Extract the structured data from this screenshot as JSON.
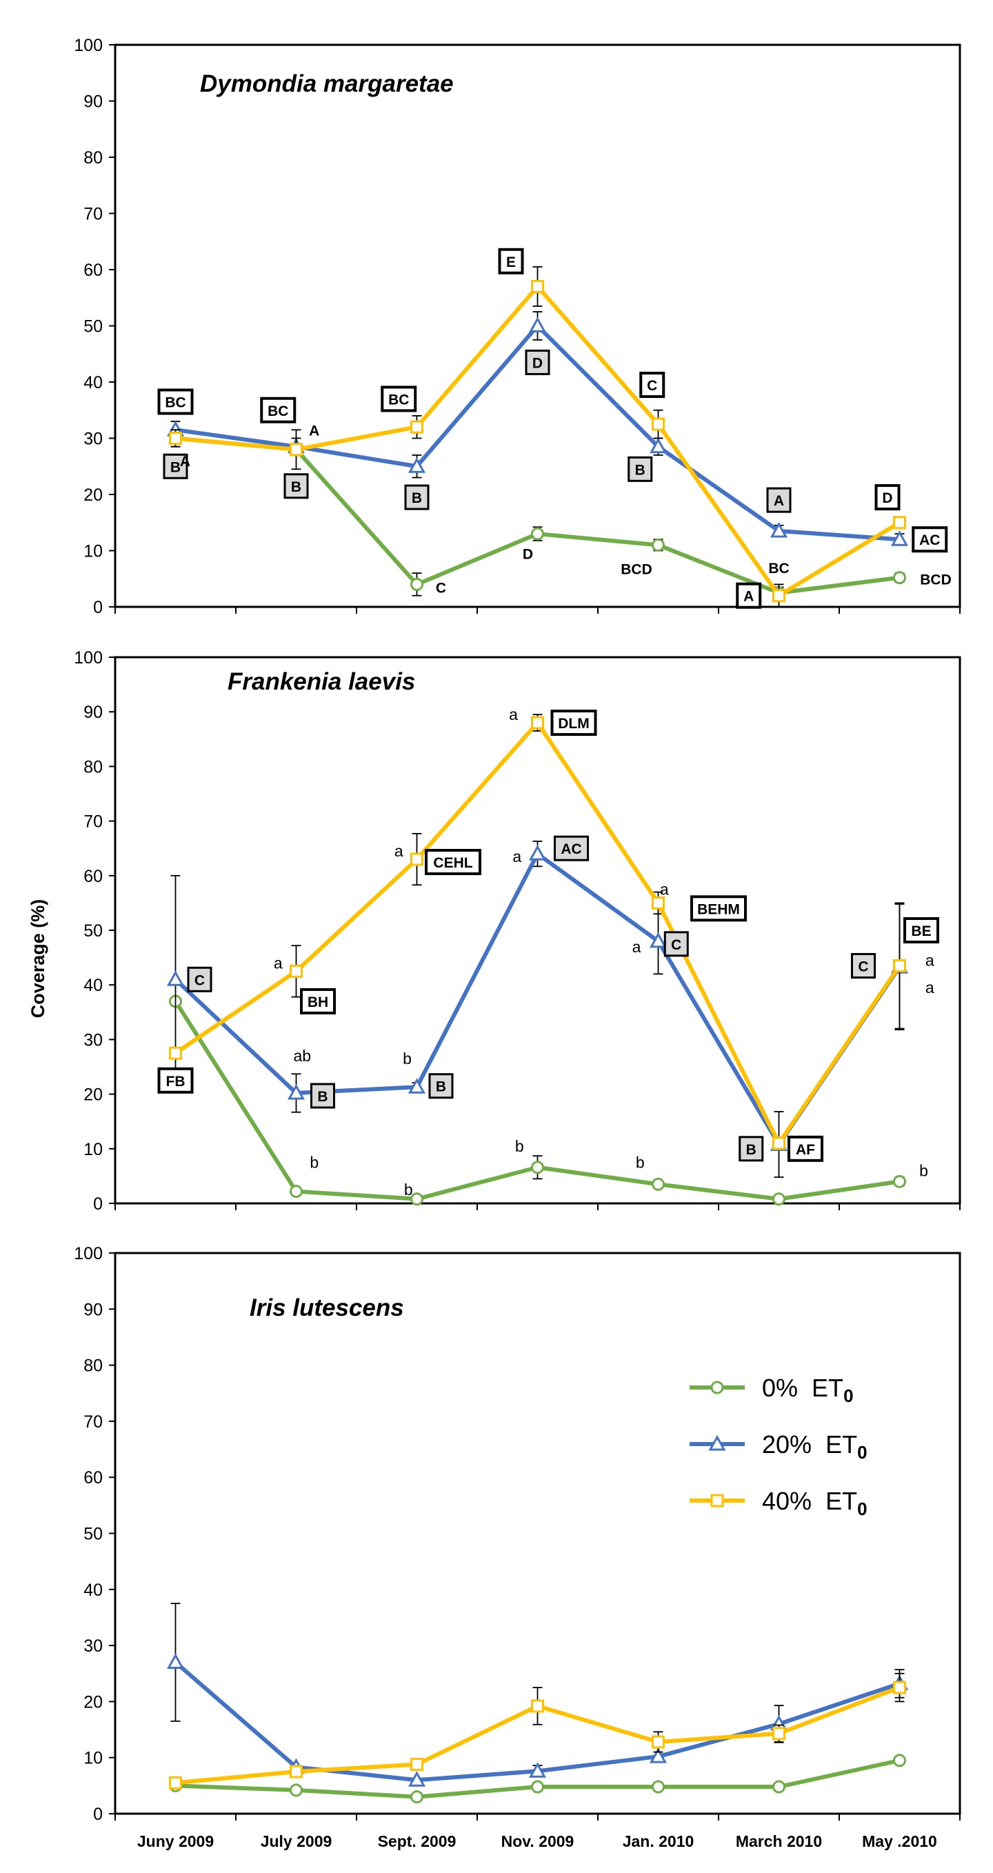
{
  "chart_data": [
    {
      "type": "line",
      "title": "Dymondia margaretae",
      "ylabel": "",
      "ylim": [
        0,
        100
      ],
      "yticks": [
        0,
        10,
        20,
        30,
        40,
        50,
        60,
        70,
        80,
        90,
        100
      ],
      "categories": [
        "Juny 2009",
        "July 2009",
        "Sept. 2009",
        "Nov. 2009",
        "Jan. 2010",
        "March 2010",
        "May .2010"
      ],
      "series": [
        {
          "name": "0% ET0",
          "color": "#70ad47",
          "marker": "circle",
          "values": [
            30,
            28,
            4,
            13,
            11,
            2.5,
            5.2
          ],
          "errors": [
            1.5,
            1,
            2,
            1.2,
            1,
            1,
            0.8
          ]
        },
        {
          "name": "20% ET0",
          "color": "#4472c4",
          "marker": "triangle",
          "values": [
            31.5,
            28.5,
            25,
            50,
            28.5,
            13.5,
            12
          ],
          "errors": [
            1.5,
            1.5,
            2,
            2.5,
            1.5,
            1,
            1
          ]
        },
        {
          "name": "40% ET0",
          "color": "#ffc000",
          "marker": "square",
          "values": [
            30,
            28,
            32,
            57,
            32.5,
            2,
            15
          ],
          "errors": [
            1.5,
            3.5,
            2,
            3.5,
            2.5,
            2,
            1
          ]
        }
      ],
      "annotations": [
        {
          "text": "BC",
          "box": "white",
          "x": 0,
          "y": 36.5
        },
        {
          "text": "B",
          "box": "gray",
          "x": 0,
          "y": 25
        },
        {
          "text": "A",
          "box": "none",
          "x": 0.08,
          "y": 26
        },
        {
          "text": "BC",
          "box": "white",
          "x": 0.85,
          "y": 35
        },
        {
          "text": "A",
          "box": "none",
          "x": 1.15,
          "y": 31.5
        },
        {
          "text": "B",
          "box": "gray",
          "x": 1,
          "y": 21.5
        },
        {
          "text": "BC",
          "box": "white",
          "x": 1.85,
          "y": 37
        },
        {
          "text": "B",
          "box": "gray",
          "x": 2,
          "y": 19.5
        },
        {
          "text": "C",
          "box": "none",
          "x": 2.2,
          "y": 3.5
        },
        {
          "text": "E",
          "box": "white",
          "x": 2.78,
          "y": 61.5
        },
        {
          "text": "D",
          "box": "gray",
          "x": 3,
          "y": 43.5
        },
        {
          "text": "D",
          "box": "none",
          "x": 2.92,
          "y": 9.5
        },
        {
          "text": "C",
          "box": "white",
          "x": 3.95,
          "y": 39.5
        },
        {
          "text": "B",
          "box": "gray",
          "x": 3.85,
          "y": 24.5
        },
        {
          "text": "BCD",
          "box": "none",
          "x": 3.82,
          "y": 6.8
        },
        {
          "text": "A",
          "box": "gray",
          "x": 5,
          "y": 19
        },
        {
          "text": "BC",
          "box": "none",
          "x": 5,
          "y": 7
        },
        {
          "text": "A",
          "box": "white",
          "x": 4.75,
          "y": 2
        },
        {
          "text": "D",
          "box": "white",
          "x": 5.9,
          "y": 19.5
        },
        {
          "text": "AC",
          "box": "white",
          "x": 6.25,
          "y": 12
        },
        {
          "text": "BCD",
          "box": "none",
          "x": 6.3,
          "y": 5
        }
      ]
    },
    {
      "type": "line",
      "title": "Frankenia laevis",
      "ylabel": "Coverage (%)",
      "ylim": [
        0,
        100
      ],
      "yticks": [
        0,
        10,
        20,
        30,
        40,
        50,
        60,
        70,
        80,
        90,
        100
      ],
      "categories": [
        "Juny 2009",
        "July 2009",
        "Sept. 2009",
        "Nov. 2009",
        "Jan. 2010",
        "March 2010",
        "May .2010"
      ],
      "series": [
        {
          "name": "0% ET0",
          "color": "#70ad47",
          "marker": "circle",
          "values": [
            37,
            2.2,
            0.8,
            6.6,
            3.5,
            0.8,
            4
          ],
          "errors": [
            0,
            0,
            0,
            2.1,
            0,
            0,
            0.8
          ]
        },
        {
          "name": "20% ET0",
          "color": "#4472c4",
          "marker": "triangle",
          "values": [
            41,
            20.2,
            21.3,
            64,
            48,
            10.8,
            43.3
          ],
          "errors": [
            19,
            3.5,
            0.8,
            2.3,
            6,
            6,
            11.5
          ]
        },
        {
          "name": "40% ET0",
          "color": "#ffc000",
          "marker": "square",
          "values": [
            27.5,
            42.5,
            63,
            88,
            55,
            11,
            43.5
          ],
          "errors": [
            0,
            4.7,
            4.7,
            1.5,
            2,
            0,
            11.5
          ]
        }
      ],
      "annotations": [
        {
          "text": "C",
          "box": "gray",
          "x": 0.2,
          "y": 41
        },
        {
          "text": "FB",
          "box": "white",
          "x": 0,
          "y": 22.5
        },
        {
          "text": "a",
          "box": "none",
          "x": 0.85,
          "y": 44
        },
        {
          "text": "BH",
          "box": "white",
          "x": 1.18,
          "y": 37
        },
        {
          "text": "ab",
          "box": "none",
          "x": 1.05,
          "y": 27
        },
        {
          "text": "B",
          "box": "gray",
          "x": 1.22,
          "y": 19.7
        },
        {
          "text": "b",
          "box": "none",
          "x": 1.15,
          "y": 7.5
        },
        {
          "text": "a",
          "box": "none",
          "x": 1.85,
          "y": 64.5
        },
        {
          "text": "CEHL",
          "box": "white",
          "x": 2.3,
          "y": 62.5
        },
        {
          "text": "b",
          "box": "none",
          "x": 1.92,
          "y": 26.5
        },
        {
          "text": "B",
          "box": "gray",
          "x": 2.2,
          "y": 21.5
        },
        {
          "text": "b",
          "box": "none",
          "x": 1.93,
          "y": 2.5
        },
        {
          "text": "a",
          "box": "none",
          "x": 2.8,
          "y": 89.5
        },
        {
          "text": "DLM",
          "box": "white",
          "x": 3.3,
          "y": 88
        },
        {
          "text": "a",
          "box": "none",
          "x": 2.83,
          "y": 63.5
        },
        {
          "text": "AC",
          "box": "gray",
          "x": 3.28,
          "y": 65
        },
        {
          "text": "b",
          "box": "none",
          "x": 2.85,
          "y": 10.5
        },
        {
          "text": "a",
          "box": "none",
          "x": 4.05,
          "y": 57.5
        },
        {
          "text": "BEHM",
          "box": "white",
          "x": 4.5,
          "y": 54
        },
        {
          "text": "a",
          "box": "none",
          "x": 3.82,
          "y": 47
        },
        {
          "text": "C",
          "box": "gray",
          "x": 4.15,
          "y": 47.5
        },
        {
          "text": "b",
          "box": "none",
          "x": 3.85,
          "y": 7.5
        },
        {
          "text": "B",
          "box": "gray",
          "x": 4.77,
          "y": 10
        },
        {
          "text": "AF",
          "box": "white",
          "x": 5.22,
          "y": 10
        },
        {
          "text": "C",
          "box": "gray",
          "x": 5.7,
          "y": 43.5
        },
        {
          "text": "BE",
          "box": "white",
          "x": 6.18,
          "y": 50
        },
        {
          "text": "a",
          "box": "none",
          "x": 6.25,
          "y": 44.5
        },
        {
          "text": "a",
          "box": "none",
          "x": 6.25,
          "y": 39.5
        },
        {
          "text": "b",
          "box": "none",
          "x": 6.2,
          "y": 6
        }
      ]
    },
    {
      "type": "line",
      "title": "Iris lutescens",
      "ylabel": "",
      "ylim": [
        0,
        100
      ],
      "yticks": [
        0,
        10,
        20,
        30,
        40,
        50,
        60,
        70,
        80,
        90,
        100
      ],
      "categories": [
        "Juny 2009",
        "July 2009",
        "Sept. 2009",
        "Nov. 2009",
        "Jan. 2010",
        "March 2010",
        "May .2010"
      ],
      "xticklabels": [
        "Juny 2009",
        "July 2009",
        "Sept. 2009",
        "Nov. 2009",
        "Jan. 2010",
        "March 2010",
        "May .2010"
      ],
      "series": [
        {
          "name": "0% ET0",
          "color": "#70ad47",
          "marker": "circle",
          "values": [
            5,
            4.2,
            3,
            4.8,
            4.8,
            4.8,
            9.5
          ],
          "errors": [
            0,
            0,
            0,
            0,
            0,
            0,
            0
          ]
        },
        {
          "name": "20% ET0",
          "color": "#4472c4",
          "marker": "triangle",
          "values": [
            27,
            8.3,
            6,
            7.6,
            10.2,
            16,
            23.2
          ],
          "errors": [
            10.5,
            0,
            0,
            1,
            0,
            3.3,
            2.5
          ]
        },
        {
          "name": "40% ET0",
          "color": "#ffc000",
          "marker": "square",
          "values": [
            5.5,
            7.5,
            8.8,
            19.2,
            12.8,
            14.3,
            22.5
          ],
          "errors": [
            0,
            0,
            1,
            3.3,
            1.8,
            1.5,
            2.5
          ]
        }
      ],
      "legend": {
        "placement": "right",
        "items": [
          {
            "label": "0%",
            "sub": "ET",
            "subscript": "0",
            "color": "#70ad47",
            "marker": "circle"
          },
          {
            "label": "20%",
            "sub": "ET",
            "subscript": "0",
            "color": "#4472c4",
            "marker": "triangle"
          },
          {
            "label": "40%",
            "sub": "ET",
            "subscript": "0",
            "color": "#ffc000",
            "marker": "square"
          }
        ]
      },
      "annotations": []
    }
  ]
}
